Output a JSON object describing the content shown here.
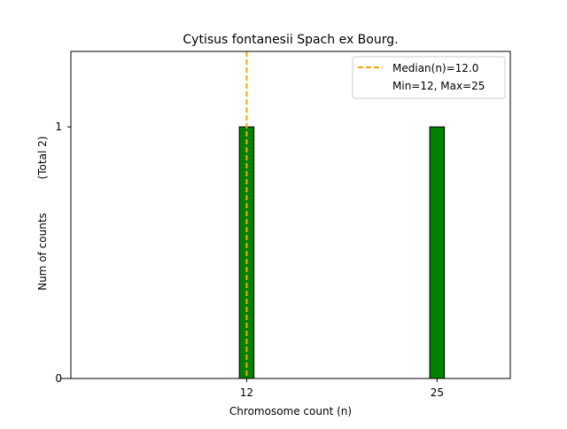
{
  "chart_data": {
    "type": "bar",
    "title": "Cytisus fontanesii Spach ex Bourg.",
    "xlabel": "Chromosome count (n)",
    "ylabel": "Num of counts",
    "ylabel_note": "(Total 2)",
    "x_ticks": [
      12,
      25
    ],
    "y_ticks": [
      0,
      1
    ],
    "xlim": [
      0,
      30
    ],
    "ylim": [
      0,
      1.3
    ],
    "bars": [
      {
        "x": 12,
        "count": 1
      },
      {
        "x": 25,
        "count": 1
      }
    ],
    "bar_color": "#008000",
    "median": 12.0,
    "median_color": "#ffa500",
    "legend": {
      "placement": "top-right",
      "median_label": "Median(n)=12.0",
      "range_label": "Min=12, Max=25"
    },
    "grid": false
  }
}
